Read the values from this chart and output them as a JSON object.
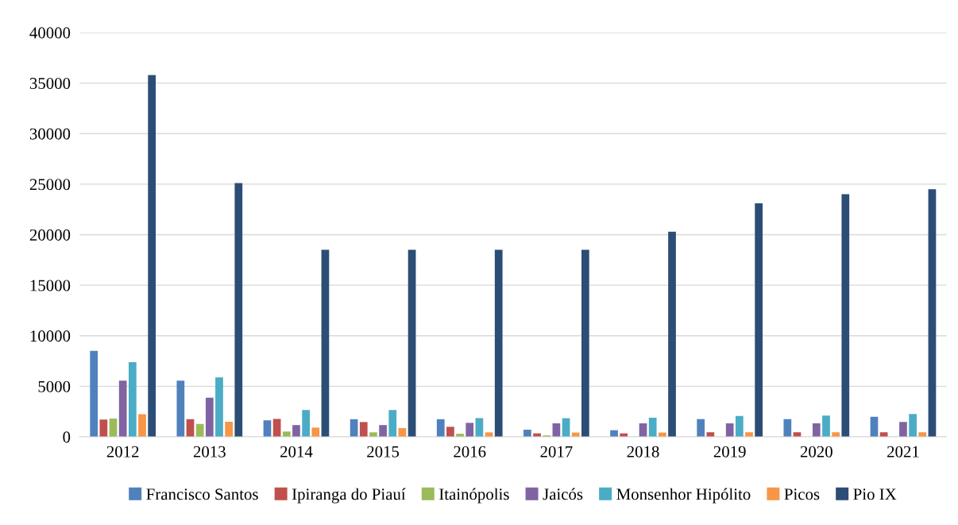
{
  "chart_data": {
    "type": "bar",
    "categories": [
      "2012",
      "2013",
      "2014",
      "2015",
      "2016",
      "2017",
      "2018",
      "2019",
      "2020",
      "2021"
    ],
    "series": [
      {
        "name": "Francisco Santos",
        "color": "#4f81bd",
        "values": [
          8500,
          5550,
          1630,
          1740,
          1740,
          700,
          650,
          1750,
          1750,
          1980
        ]
      },
      {
        "name": "Ipiranga do Piauí",
        "color": "#c0504d",
        "values": [
          1700,
          1740,
          1770,
          1460,
          990,
          340,
          340,
          450,
          450,
          450
        ]
      },
      {
        "name": "Itainópolis",
        "color": "#9bbb59",
        "values": [
          1800,
          1270,
          520,
          440,
          300,
          140,
          0,
          0,
          0,
          0
        ]
      },
      {
        "name": "Jaicós",
        "color": "#8064a2",
        "values": [
          5550,
          3870,
          1160,
          1160,
          1380,
          1330,
          1330,
          1330,
          1330,
          1470
        ]
      },
      {
        "name": "Monsenhor Hipólito",
        "color": "#4bacc6",
        "values": [
          7380,
          5880,
          2650,
          2650,
          1850,
          1840,
          1890,
          2060,
          2090,
          2260
        ]
      },
      {
        "name": "Picos",
        "color": "#f79646",
        "values": [
          2240,
          1490,
          910,
          860,
          440,
          420,
          420,
          450,
          450,
          450
        ]
      },
      {
        "name": "Pio IX",
        "color": "#2c4d75",
        "values": [
          35800,
          25100,
          18500,
          18500,
          18500,
          18500,
          20300,
          23100,
          24000,
          24500
        ]
      }
    ],
    "ylim": [
      0,
      40000
    ],
    "yticks": [
      0,
      5000,
      10000,
      15000,
      20000,
      25000,
      30000,
      35000,
      40000
    ],
    "grid": "y",
    "legend": "bottom"
  }
}
